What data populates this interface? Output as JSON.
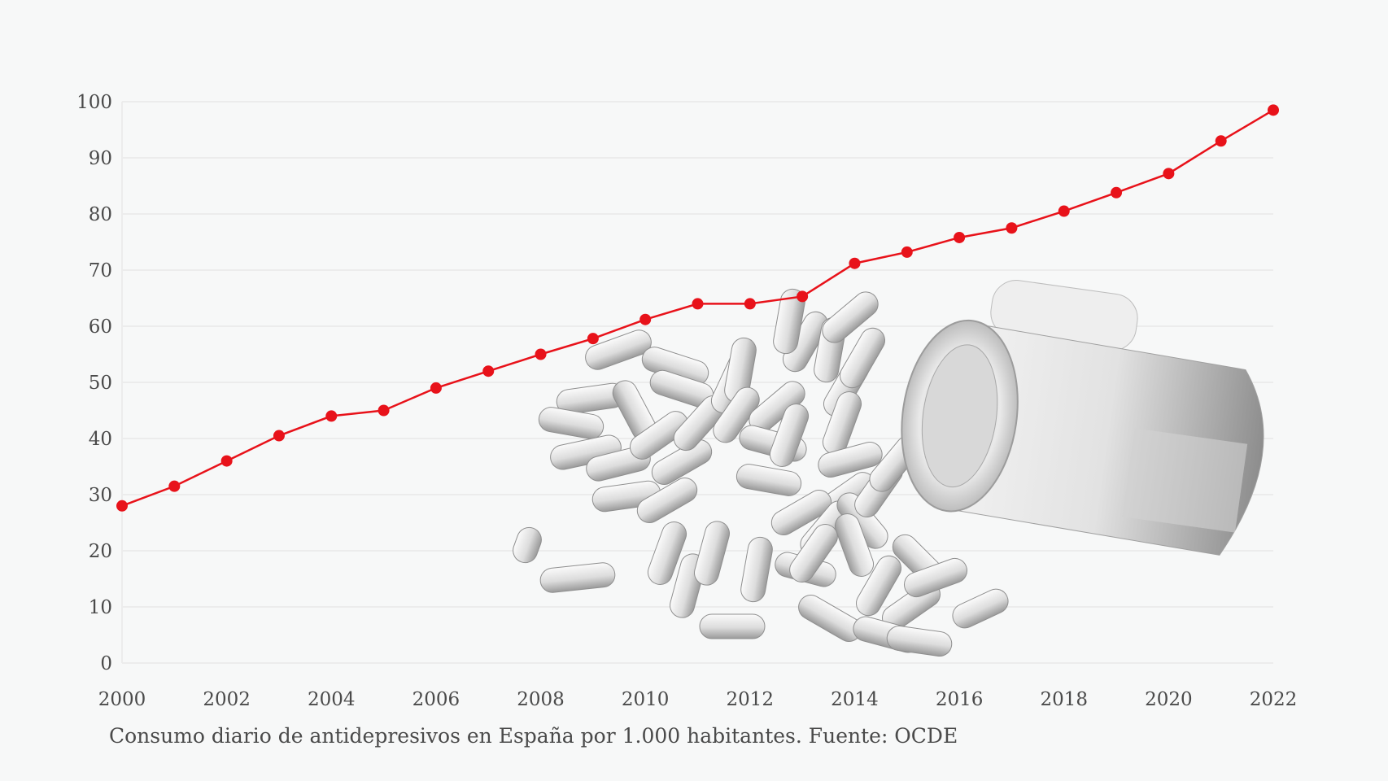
{
  "chart_data": {
    "type": "line",
    "title": "",
    "xlabel": "",
    "ylabel": "",
    "x": [
      2000,
      2001,
      2002,
      2003,
      2004,
      2005,
      2006,
      2007,
      2008,
      2009,
      2010,
      2011,
      2012,
      2013,
      2014,
      2015,
      2016,
      2017,
      2018,
      2019,
      2020,
      2021,
      2022
    ],
    "series": [
      {
        "values": [
          28,
          31.5,
          36,
          40.5,
          44,
          45,
          49,
          52,
          55,
          57.8,
          61.2,
          64,
          64,
          65.3,
          71.2,
          73.2,
          75.8,
          77.5,
          80.5,
          83.8,
          87.2,
          93,
          98.5
        ],
        "color": "#e8121a"
      }
    ],
    "xticks": [
      "2000",
      "2002",
      "2004",
      "2006",
      "2008",
      "2010",
      "2012",
      "2014",
      "2016",
      "2018",
      "2020",
      "2022"
    ],
    "yticks": [
      "0",
      "10",
      "20",
      "30",
      "40",
      "50",
      "60",
      "70",
      "80",
      "90",
      "100"
    ],
    "xlim": [
      2000,
      2022
    ],
    "ylim": [
      0,
      100
    ],
    "grid": true,
    "legend": "none"
  },
  "caption": "Consumo diario de antidepresivos en España por 1.000 habitantes. Fuente: OCDE",
  "colors": {
    "background": "#f7f8f8",
    "grid": "#ececec",
    "line": "#e8121a",
    "text": "#4a4a4a"
  },
  "illustration": {
    "description_icon": "pill-bottle-icon"
  }
}
